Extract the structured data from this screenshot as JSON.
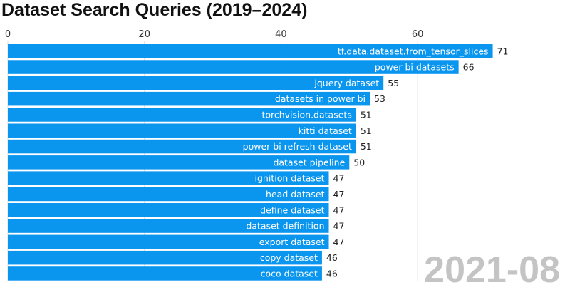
{
  "chart_data": {
    "type": "bar",
    "orientation": "horizontal",
    "title": "Dataset Search Queries (2019–2024)",
    "period": "2021-08",
    "xlim": [
      0,
      82
    ],
    "xticks": [
      0,
      20,
      40,
      60
    ],
    "grid": true,
    "color": "#0a95ee",
    "categories": [
      "tf.data.dataset.from_tensor_slices",
      "power bi datasets",
      "jquery dataset",
      "datasets in power bi",
      "torchvision.datasets",
      "kitti dataset",
      "power bi refresh dataset",
      "dataset pipeline",
      "ignition dataset",
      "head dataset",
      "define dataset",
      "dataset definition",
      "export dataset",
      "copy dataset",
      "coco dataset"
    ],
    "values": [
      71,
      66,
      55,
      53,
      51,
      51,
      51,
      50,
      47,
      47,
      47,
      47,
      47,
      46,
      46
    ]
  }
}
